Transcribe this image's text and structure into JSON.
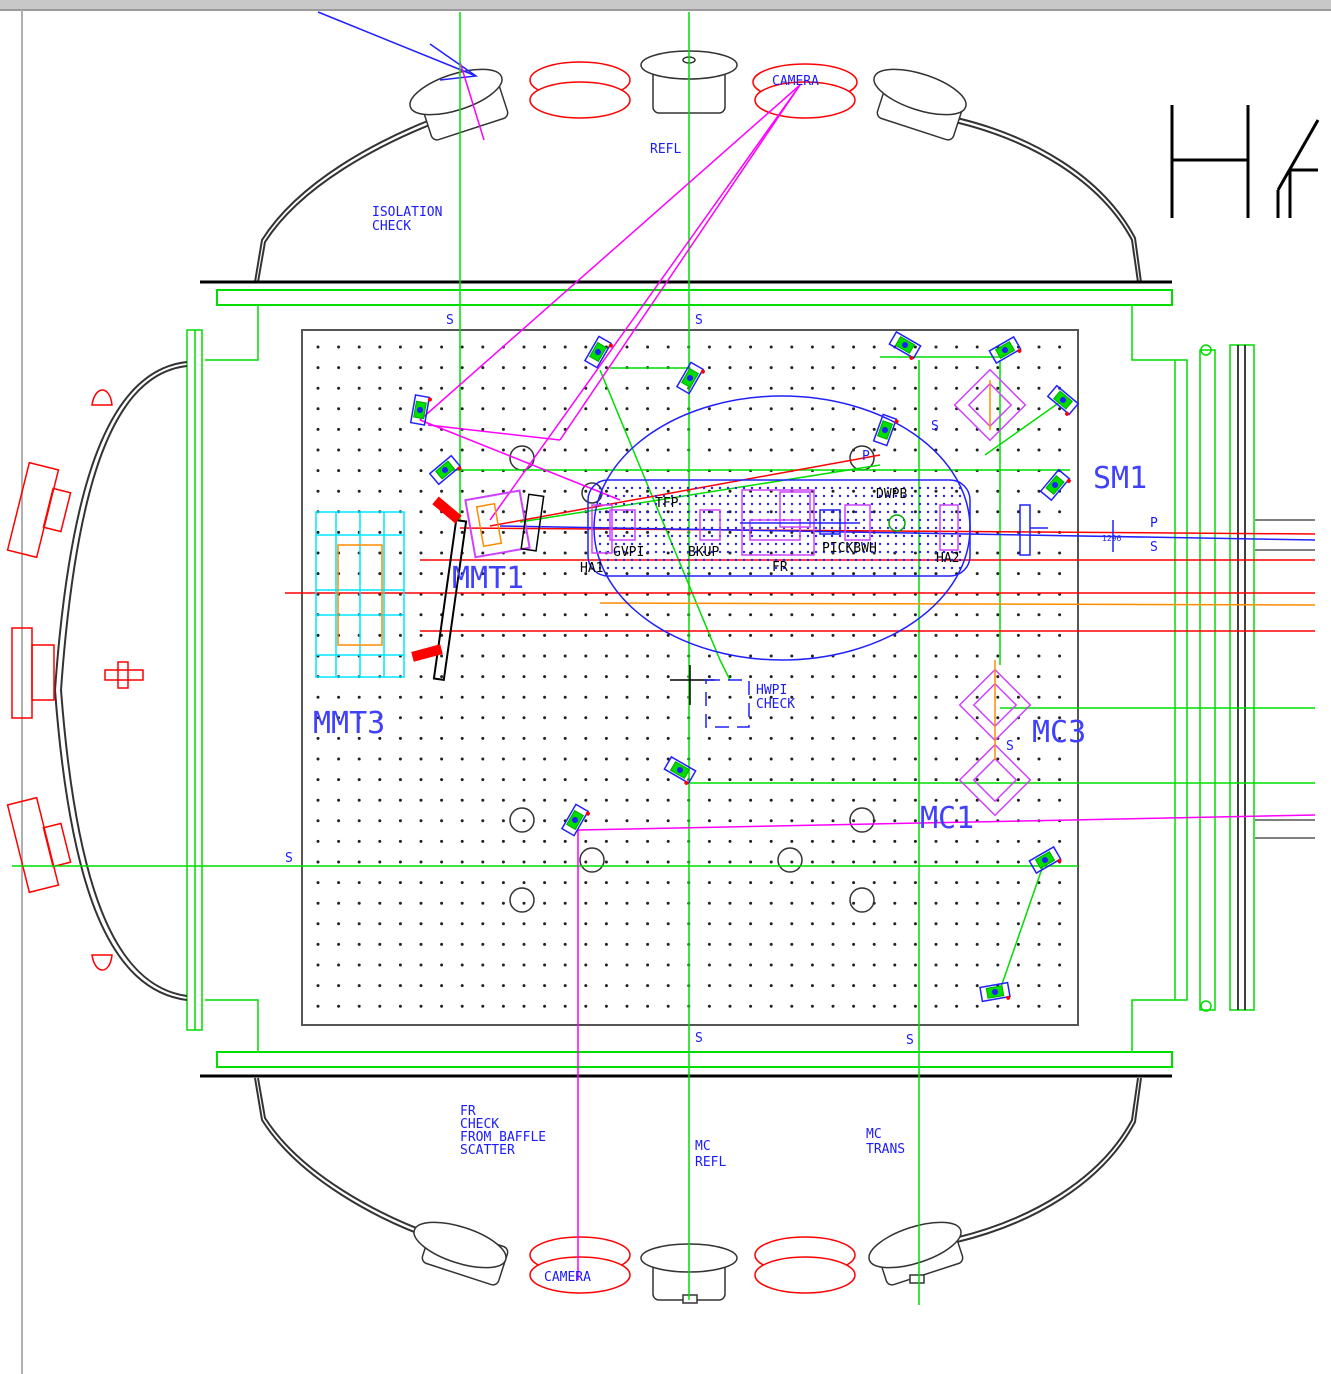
{
  "labels": {
    "isolation_check": [
      "ISOLATION",
      "CHECK"
    ],
    "refl_top": "REFL",
    "camera_top": "CAMERA",
    "camera_bottom": "CAMERA",
    "fr_check": [
      "FR",
      "CHECK",
      "FROM BAFFLE",
      "SCATTER"
    ],
    "mc_refl": [
      "MC",
      "REFL"
    ],
    "mc_trans": [
      "MC",
      "TRANS"
    ],
    "mmt1": "MMT1",
    "mmt3": "MMT3",
    "sm1": "SM1",
    "mc3": "MC3",
    "mc1": "MC1",
    "hwpi_check": [
      "HWPI",
      "CHECK"
    ],
    "ha1": "HA1",
    "ha2": "HA2",
    "gvpi": "GVPI",
    "bkup": "BKUP",
    "tfp": "TFP",
    "pickbwh": "PICKBWH",
    "fr": "FR",
    "dwpb": "DWPB",
    "s_marks": [
      "S",
      "S",
      "S",
      "S",
      "S",
      "S"
    ],
    "p_left": "P",
    "p_right": "P",
    "s_right": "S",
    "tiny": "1296",
    "big_partial": "H4"
  },
  "colors": {
    "frame": "#b4b4b4",
    "structure": "#000000",
    "green": "#00dd00",
    "magenta": "#ff00ff",
    "blue": "#2020ff",
    "red": "#ff0000",
    "cyan": "#00e5ff",
    "orange": "#ff8c00",
    "violet": "#cc44ff",
    "grey": "#505050"
  }
}
